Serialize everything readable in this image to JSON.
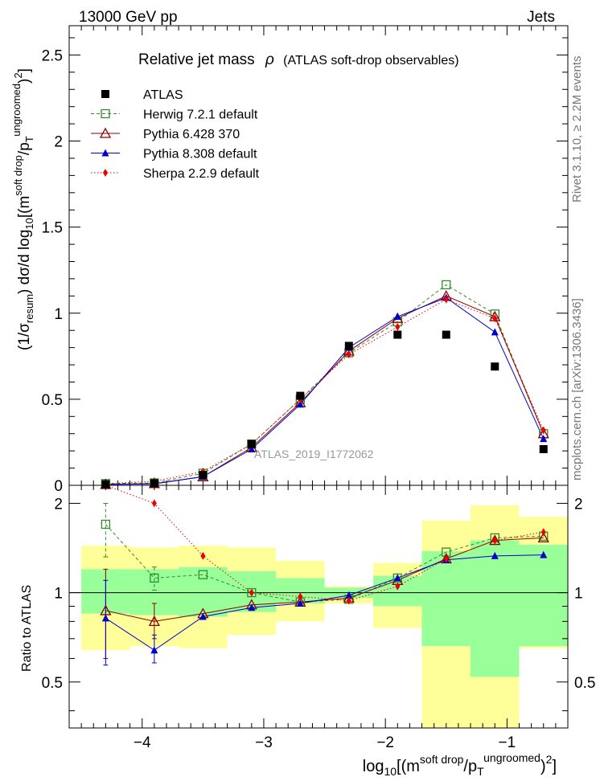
{
  "header": {
    "left": "13000 GeV pp",
    "right": "Jets"
  },
  "side_text": {
    "rivet": "Rivet 3.1.10, ≥ 2.2M events",
    "mcplots": "mcplots.cern.ch [arXiv:1306.3436]"
  },
  "chart_data": {
    "type": "scatter",
    "title_main": "Relative jet mass",
    "title_rho": "ρ",
    "title_paren": "(ATLAS soft-drop observables)",
    "watermark": "ATLAS_2019_I1772062",
    "ylabel": "(1/σ_resum) dσ/d log10[(m^soft drop/p_T^ungroomed)^2]",
    "ylabel_parts": {
      "a": "(1/σ",
      "a_sub": "resum",
      "b": ") dσ/d log",
      "b_sub": "10",
      "c": "[(m",
      "c_sup": "soft drop",
      "d": "/p",
      "d_sub": "T",
      "d_sup": "ungroomed",
      "e": ")",
      "e_sup": "2",
      "f": "]"
    },
    "xlabel_parts": {
      "a": "log",
      "a_sub": "10",
      "b": "[(m",
      "b_sup": "soft drop",
      "c": "/p",
      "c_sub": "T",
      "c_sup": "ungroomed",
      "d": ")",
      "d_sup": "2",
      "e": "]"
    },
    "ratio_ylabel": "Ratio to ATLAS",
    "xlim": [
      -4.6,
      -0.5
    ],
    "ylim": [
      0,
      2.67
    ],
    "ratio_ylim": [
      0.35,
      2.3
    ],
    "x_ticks": [
      "−4",
      "−3",
      "−2",
      "−1"
    ],
    "x_tick_values": [
      -4,
      -3,
      -2,
      -1
    ],
    "y_ticks": [
      "0",
      "0.5",
      "1",
      "1.5",
      "2",
      "2.5"
    ],
    "y_tick_values": [
      0,
      0.5,
      1,
      1.5,
      2,
      2.5
    ],
    "ratio_y_ticks": [
      "0.5",
      "1",
      "2"
    ],
    "ratio_y_tick_values": [
      0.5,
      1,
      2
    ],
    "bins": [
      -4.5,
      -4.1,
      -3.7,
      -3.3,
      -2.9,
      -2.5,
      -2.1,
      -1.7,
      -1.3,
      -0.9,
      -0.5
    ],
    "x": [
      -4.3,
      -3.9,
      -3.5,
      -3.1,
      -2.7,
      -2.3,
      -1.9,
      -1.5,
      -1.1,
      -0.7
    ],
    "series": [
      {
        "name": "ATLAS",
        "color": "#000000",
        "marker": "square-filled",
        "line": "none",
        "values": [
          0.006,
          0.012,
          0.06,
          0.24,
          0.52,
          0.81,
          0.875,
          0.875,
          0.69,
          0.21
        ]
      },
      {
        "name": "Herwig 7.2.1 default",
        "color": "#338a2e",
        "marker": "square-open",
        "line": "dashed",
        "values": [
          0.01,
          0.014,
          0.07,
          0.24,
          0.5,
          0.77,
          0.95,
          1.165,
          0.995,
          0.3
        ],
        "ratio": [
          1.7,
          1.12,
          1.15,
          1.0,
          0.93,
          0.95,
          1.12,
          1.37,
          1.53,
          1.55
        ]
      },
      {
        "name": "Pythia 6.428 370",
        "color": "#8b0000",
        "marker": "triangle-open",
        "line": "solid",
        "values": [
          0.005,
          0.01,
          0.05,
          0.22,
          0.48,
          0.78,
          0.97,
          1.1,
          0.98,
          0.3
        ],
        "ratio": [
          0.87,
          0.8,
          0.85,
          0.91,
          0.93,
          0.96,
          1.1,
          1.3,
          1.5,
          1.53
        ]
      },
      {
        "name": "Pythia 8.308 default",
        "color": "#0000cc",
        "marker": "triangle-filled",
        "line": "solid",
        "values": [
          0.005,
          0.008,
          0.05,
          0.21,
          0.47,
          0.8,
          0.98,
          1.09,
          0.89,
          0.27
        ],
        "ratio": [
          0.82,
          0.64,
          0.83,
          0.89,
          0.92,
          0.98,
          1.12,
          1.29,
          1.33,
          1.34
        ]
      },
      {
        "name": "Sherpa 2.2.9 default",
        "color": "#ee0000",
        "marker": "diamond-filled",
        "line": "dotted",
        "values": [
          0.01,
          0.024,
          0.08,
          0.24,
          0.5,
          0.76,
          0.92,
          1.08,
          0.97,
          0.32
        ],
        "ratio": [
          2.5,
          2.0,
          1.33,
          1.0,
          0.97,
          0.94,
          1.05,
          1.3,
          1.5,
          1.6
        ]
      }
    ],
    "ratio_error_bars": [
      {
        "series": 1,
        "x": -4.3,
        "lo": 1.32,
        "hi": 2.0
      },
      {
        "series": 1,
        "x": -3.9,
        "lo": 1.02,
        "hi": 1.22
      },
      {
        "series": 2,
        "x": -4.3,
        "lo": 0.6,
        "hi": 1.2
      },
      {
        "series": 2,
        "x": -3.9,
        "lo": 0.7,
        "hi": 0.92
      },
      {
        "series": 3,
        "x": -4.3,
        "lo": 0.57,
        "hi": 1.1
      },
      {
        "series": 3,
        "x": -3.9,
        "lo": 0.58,
        "hi": 0.72
      }
    ],
    "ratio_bands": {
      "green": [
        [
          0.85,
          1.2
        ],
        [
          0.84,
          1.2
        ],
        [
          0.83,
          1.22
        ],
        [
          0.86,
          1.18
        ],
        [
          0.92,
          1.12
        ],
        [
          0.96,
          1.04
        ],
        [
          0.9,
          1.14
        ],
        [
          0.66,
          1.38
        ],
        [
          0.52,
          1.5
        ],
        [
          0.66,
          1.45
        ]
      ],
      "yellow": [
        [
          0.64,
          1.44
        ],
        [
          0.66,
          1.42
        ],
        [
          0.65,
          1.44
        ],
        [
          0.72,
          1.42
        ],
        [
          0.8,
          1.28
        ],
        [
          0.92,
          1.05
        ],
        [
          0.76,
          1.26
        ],
        [
          0.3,
          1.75
        ],
        [
          0.3,
          1.97
        ],
        [
          0.65,
          1.8
        ]
      ]
    },
    "legend_position": "top-left"
  }
}
